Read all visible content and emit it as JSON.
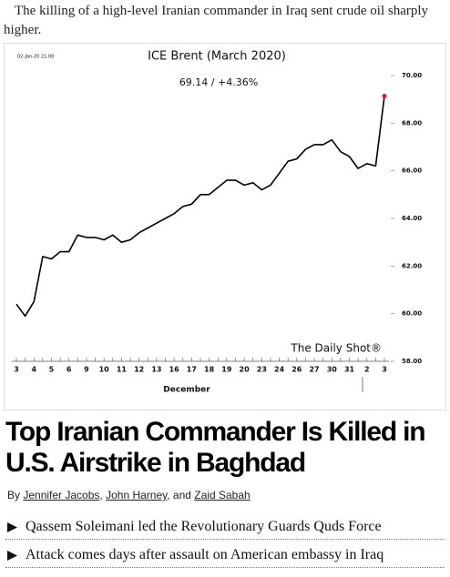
{
  "caption": "The killing of a high-level Iranian commander in Iraq sent crude oil sharply higher.",
  "chart_data": {
    "type": "line",
    "title": "ICE Brent (March 2020)",
    "timestamp": "02-Jan-20 21:00",
    "annotation": "69.14  /  +4.36%",
    "watermark": "The Daily Shot®",
    "x_label": "December",
    "categories": [
      "3",
      null,
      "4",
      null,
      "5",
      null,
      "6",
      null,
      "9",
      null,
      "10",
      null,
      "11",
      null,
      "12",
      null,
      "13",
      null,
      "16",
      null,
      "17",
      null,
      "18",
      null,
      "19",
      null,
      "20",
      null,
      "23",
      null,
      "24",
      null,
      "26",
      null,
      "27",
      null,
      "30",
      null,
      "31",
      null,
      "2",
      null,
      "3"
    ],
    "values": [
      60.4,
      59.9,
      60.5,
      62.4,
      62.3,
      62.6,
      62.6,
      63.3,
      63.2,
      63.2,
      63.1,
      63.3,
      63.0,
      63.1,
      63.4,
      63.6,
      63.8,
      64.0,
      64.2,
      64.5,
      64.6,
      65.0,
      65.0,
      65.3,
      65.6,
      65.6,
      65.4,
      65.5,
      65.2,
      65.4,
      65.9,
      66.4,
      66.5,
      66.9,
      67.1,
      67.1,
      67.3,
      66.8,
      66.6,
      66.1,
      66.3,
      66.2,
      69.14
    ],
    "color": "#000000",
    "last_point_color": "#d62020",
    "ylim": [
      58,
      70
    ],
    "yticks": [
      {
        "value": 58,
        "label": "58.00"
      },
      {
        "value": 60,
        "label": "60.00"
      },
      {
        "value": 62,
        "label": "62.00"
      },
      {
        "value": 64,
        "label": "64.00"
      },
      {
        "value": 66,
        "label": "66.00"
      },
      {
        "value": 68,
        "label": "68.00"
      },
      {
        "value": 70,
        "label": "70.00"
      }
    ],
    "grid": false
  },
  "headline": "Top Iranian Commander Is Killed in U.S. Airstrike in Baghdad",
  "byline": {
    "prefix": "By",
    "authors": [
      "Jennifer Jacobs",
      "John Harney",
      "Zaid Sabah"
    ],
    "separators": [
      ",",
      ", and"
    ]
  },
  "bullets": [
    "Qassem Soleimani led the Revolutionary Guards Quds Force",
    "Attack comes days after assault on American embassy in Iraq"
  ]
}
